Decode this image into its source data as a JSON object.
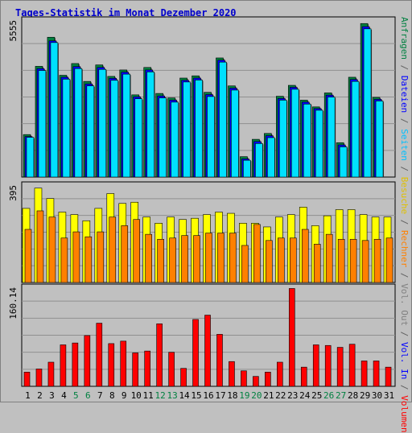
{
  "title": "Tages-Statistik im Monat Dezember 2020",
  "legend": {
    "items": [
      {
        "label": "Anfragen",
        "color": "#008040"
      },
      {
        "label": " / ",
        "color": "#606060"
      },
      {
        "label": "Dateien",
        "color": "#0000ff"
      },
      {
        "label": " / ",
        "color": "#606060"
      },
      {
        "label": "Seiten",
        "color": "#00c0ff"
      },
      {
        "label": " / ",
        "color": "#606060"
      },
      {
        "label": "Besuche",
        "color": "#e0c000"
      },
      {
        "label": " / ",
        "color": "#606060"
      },
      {
        "label": "Rechner",
        "color": "#ff8000"
      },
      {
        "label": " / ",
        "color": "#606060"
      },
      {
        "label": "Vol. Out",
        "color": "#808080"
      },
      {
        "label": " / ",
        "color": "#606060"
      },
      {
        "label": "Vol. In",
        "color": "#0000ff"
      },
      {
        "label": " / ",
        "color": "#606060"
      },
      {
        "label": "Volumen",
        "color": "#ff0000"
      }
    ]
  },
  "colors": {
    "background": "#c0c0c0",
    "anfragen": "#008040",
    "dateien": "#0000ff",
    "seiten": "#00e0ff",
    "besuche": "#ffff00",
    "rechner": "#ff8000",
    "volumen": "#ff0000",
    "weekend_label": "#008040"
  },
  "chart_data": [
    {
      "type": "bar",
      "categories": [
        "1",
        "2",
        "3",
        "4",
        "5",
        "6",
        "7",
        "8",
        "9",
        "10",
        "11",
        "12",
        "13",
        "14",
        "15",
        "16",
        "17",
        "18",
        "19",
        "20",
        "21",
        "22",
        "23",
        "24",
        "25",
        "26",
        "27",
        "28",
        "29",
        "30",
        "31"
      ],
      "weekend_days": [
        "5",
        "6",
        "12",
        "13",
        "19",
        "20",
        "26",
        "27"
      ],
      "ymax_label": "5555",
      "ylim": [
        0,
        5555
      ],
      "series": [
        {
          "name": "Anfragen",
          "values": [
            1520,
            3960,
            5000,
            3640,
            4060,
            3420,
            4010,
            3600,
            3830,
            2940,
            3920,
            2990,
            2830,
            3540,
            3620,
            3030,
            4260,
            3260,
            730,
            1350,
            1560,
            2890,
            3280,
            2750,
            2510,
            3010,
            1230,
            3570,
            5490,
            2850,
            0
          ]
        },
        {
          "name": "Dateien",
          "values": [
            1450,
            3880,
            4870,
            3570,
            3950,
            3330,
            3920,
            3530,
            3750,
            2870,
            3830,
            2900,
            2750,
            3460,
            3540,
            2950,
            4180,
            3180,
            650,
            1270,
            1480,
            2810,
            3210,
            2680,
            2450,
            2930,
            1150,
            3490,
            5380,
            2780,
            0
          ]
        },
        {
          "name": "Seiten",
          "values": [
            1420,
            3810,
            4810,
            3500,
            3880,
            3260,
            3850,
            3460,
            3680,
            2800,
            3760,
            2830,
            2680,
            3400,
            3470,
            2880,
            4110,
            3110,
            600,
            1200,
            1410,
            2750,
            3140,
            2610,
            2390,
            2860,
            1080,
            3420,
            5300,
            2720,
            0
          ]
        }
      ]
    },
    {
      "type": "bar",
      "categories": [
        "1",
        "2",
        "3",
        "4",
        "5",
        "6",
        "7",
        "8",
        "9",
        "10",
        "11",
        "12",
        "13",
        "14",
        "15",
        "16",
        "17",
        "18",
        "19",
        "20",
        "21",
        "22",
        "23",
        "24",
        "25",
        "26",
        "27",
        "28",
        "29",
        "30",
        "31"
      ],
      "ymax_label": "395",
      "ylim": [
        0,
        395
      ],
      "series": [
        {
          "name": "Besuche",
          "values": [
            300,
            382,
            340,
            285,
            275,
            250,
            300,
            360,
            320,
            325,
            265,
            240,
            265,
            255,
            260,
            275,
            285,
            280,
            240,
            240,
            225,
            265,
            275,
            305,
            230,
            270,
            295,
            295,
            275,
            265,
            265
          ]
        },
        {
          "name": "Rechner",
          "values": [
            215,
            290,
            265,
            180,
            205,
            185,
            205,
            265,
            230,
            255,
            195,
            175,
            180,
            190,
            190,
            200,
            200,
            200,
            150,
            235,
            170,
            180,
            180,
            215,
            155,
            195,
            175,
            175,
            170,
            175,
            180
          ]
        }
      ]
    },
    {
      "type": "bar",
      "categories": [
        "1",
        "2",
        "3",
        "4",
        "5",
        "6",
        "7",
        "8",
        "9",
        "10",
        "11",
        "12",
        "13",
        "14",
        "15",
        "16",
        "17",
        "18",
        "19",
        "20",
        "21",
        "22",
        "23",
        "24",
        "25",
        "26",
        "27",
        "28",
        "29",
        "30",
        "31"
      ],
      "ymax_label": "160.14",
      "ylim": [
        0,
        160.14
      ],
      "series": [
        {
          "name": "Volumen",
          "values": [
            23,
            28,
            39,
            67,
            70,
            82,
            102,
            69,
            73,
            54,
            57,
            101,
            55,
            29,
            108,
            115,
            84,
            40,
            25,
            16,
            23,
            39,
            158,
            31,
            67,
            66,
            63,
            68,
            41,
            41,
            31
          ]
        }
      ]
    }
  ]
}
